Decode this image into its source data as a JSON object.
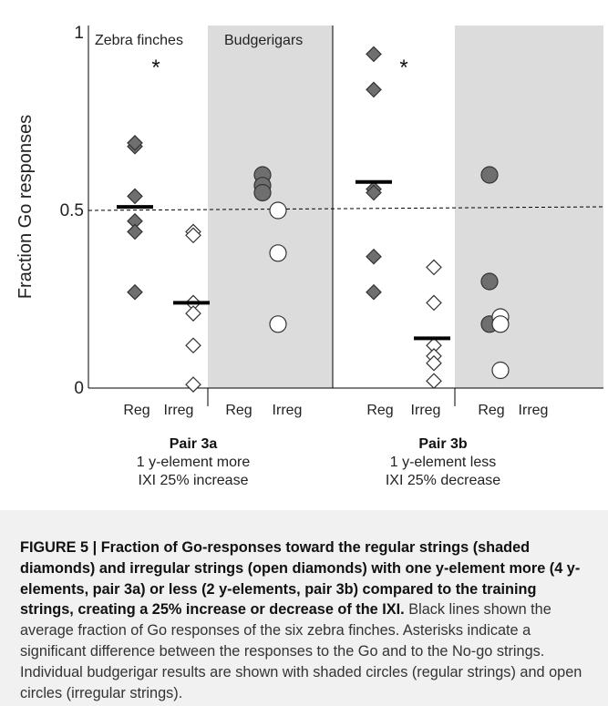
{
  "chart_data": {
    "type": "scatter",
    "ylabel": "Fraction  Go  responses",
    "yticks": [
      {
        "value": 0,
        "label": "0"
      },
      {
        "value": 0.5,
        "label": "0.5"
      },
      {
        "value": 1,
        "label": "1"
      }
    ],
    "ylim": [
      0,
      1
    ],
    "reference_line": 0.5,
    "panel_labels": [
      "Zebra finches",
      "Budgerigars"
    ],
    "x_tick_labels": [
      "Reg",
      "Irreg",
      "Reg",
      "Irreg",
      "Reg",
      "Irreg",
      "Reg",
      "Irreg"
    ],
    "groups": [
      {
        "title": "Pair 3a",
        "lines": [
          "1 y-element more",
          "IXI 25% increase"
        ],
        "zebra_finches": {
          "significant_marker": "*",
          "regular": {
            "marker": "shaded-diamond",
            "values": [
              0.68,
              0.69,
              0.54,
              0.47,
              0.44,
              0.27
            ],
            "mean": 0.51
          },
          "irregular": {
            "marker": "open-diamond",
            "values": [
              0.44,
              0.43,
              0.24,
              0.21,
              0.12,
              0.01
            ],
            "mean": 0.24
          }
        },
        "budgerigars": {
          "regular": {
            "marker": "shaded-circle",
            "values": [
              0.6,
              0.57,
              0.55
            ]
          },
          "irregular": {
            "marker": "open-circle",
            "values": [
              0.5,
              0.38,
              0.18
            ]
          }
        }
      },
      {
        "title": "Pair 3b",
        "lines": [
          "1 y-element less",
          "IXI 25% decrease"
        ],
        "zebra_finches": {
          "significant_marker": "*",
          "regular": {
            "marker": "shaded-diamond",
            "values": [
              0.94,
              0.84,
              0.56,
              0.55,
              0.37,
              0.27
            ],
            "mean": 0.58
          },
          "irregular": {
            "marker": "open-diamond",
            "values": [
              0.34,
              0.24,
              0.12,
              0.09,
              0.07,
              0.02
            ],
            "mean": 0.14
          }
        },
        "budgerigars": {
          "regular": {
            "marker": "shaded-circle",
            "values": [
              0.6,
              0.3,
              0.18
            ]
          },
          "irregular": {
            "marker": "open-circle",
            "values": [
              0.2,
              0.18,
              0.05
            ]
          }
        }
      }
    ],
    "colors": {
      "shaded": "#6f6f6f",
      "budgerigar_panel": "#dcdcdc",
      "mean_line": "#000000"
    }
  },
  "caption": {
    "bold": "FIGURE 5 | Fraction of Go-responses toward the regular strings (shaded diamonds) and irregular strings (open diamonds) with one y-element more (4 y-elements, pair 3a) or less (2 y-elements, pair 3b) compared to the training strings, creating a 25% increase or decrease of the IXI.",
    "rest": " Black lines shown the average fraction of Go responses of the six zebra finches. Asterisks indicate a significant difference between the responses to the Go and to the No-go strings. Individual budgerigar results are shown with shaded circles (regular strings) and open circles (irregular strings)."
  }
}
